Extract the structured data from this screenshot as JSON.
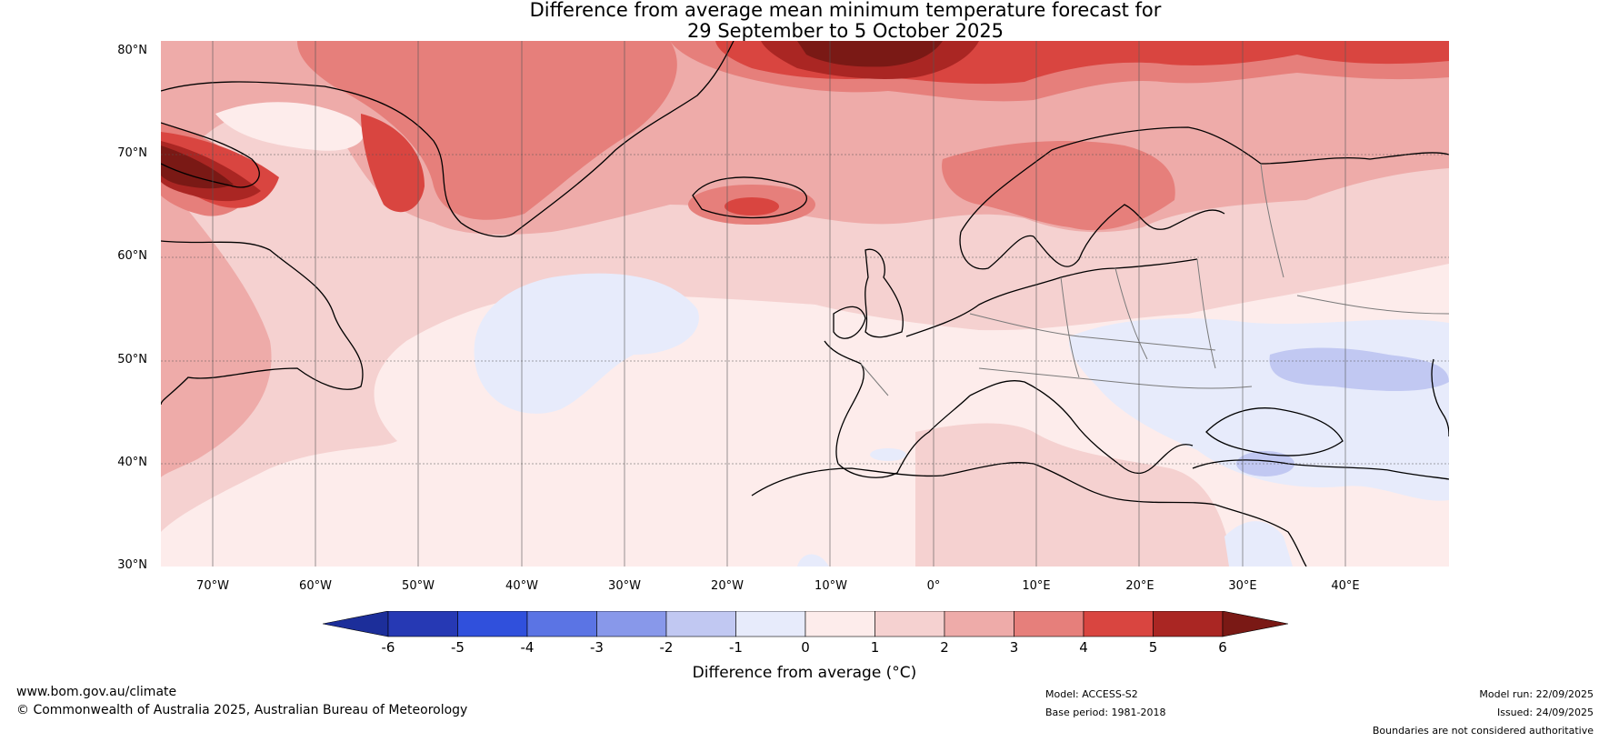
{
  "title_line1": "Difference from average mean minimum temperature forecast for",
  "title_line2": "29 September to 5 October 2025",
  "latitude_labels": [
    "80°N",
    "70°N",
    "60°N",
    "50°N",
    "40°N",
    "30°N"
  ],
  "longitude_labels": [
    "70°W",
    "60°W",
    "50°W",
    "40°W",
    "30°W",
    "20°W",
    "10°W",
    "0°",
    "10°E",
    "20°E",
    "30°E",
    "40°E"
  ],
  "colorbar": {
    "ticks": [
      "-6",
      "-5",
      "-4",
      "-3",
      "-2",
      "-1",
      "0",
      "1",
      "2",
      "3",
      "4",
      "5",
      "6"
    ],
    "colors": [
      "#1c2e9a",
      "#2639b4",
      "#3050dc",
      "#5b74e4",
      "#8898ea",
      "#c1c8f2",
      "#e7ebfb",
      "#fdeceb",
      "#f5d1d0",
      "#eeaba9",
      "#e67f7b",
      "#d94540",
      "#aa2623",
      "#7a1915"
    ],
    "label": "Difference from average (°C)"
  },
  "footer": {
    "website": "www.bom.gov.au/climate",
    "copyright": "© Commonwealth of Australia 2025, Australian Bureau of Meteorology",
    "model": "Model: ACCESS-S2",
    "base_period": "Base period: 1981-2018",
    "model_run": "Model run: 22/09/2025",
    "issued": "Issued: 24/09/2025",
    "disclaimer": "Boundaries are not considered authoritative"
  }
}
